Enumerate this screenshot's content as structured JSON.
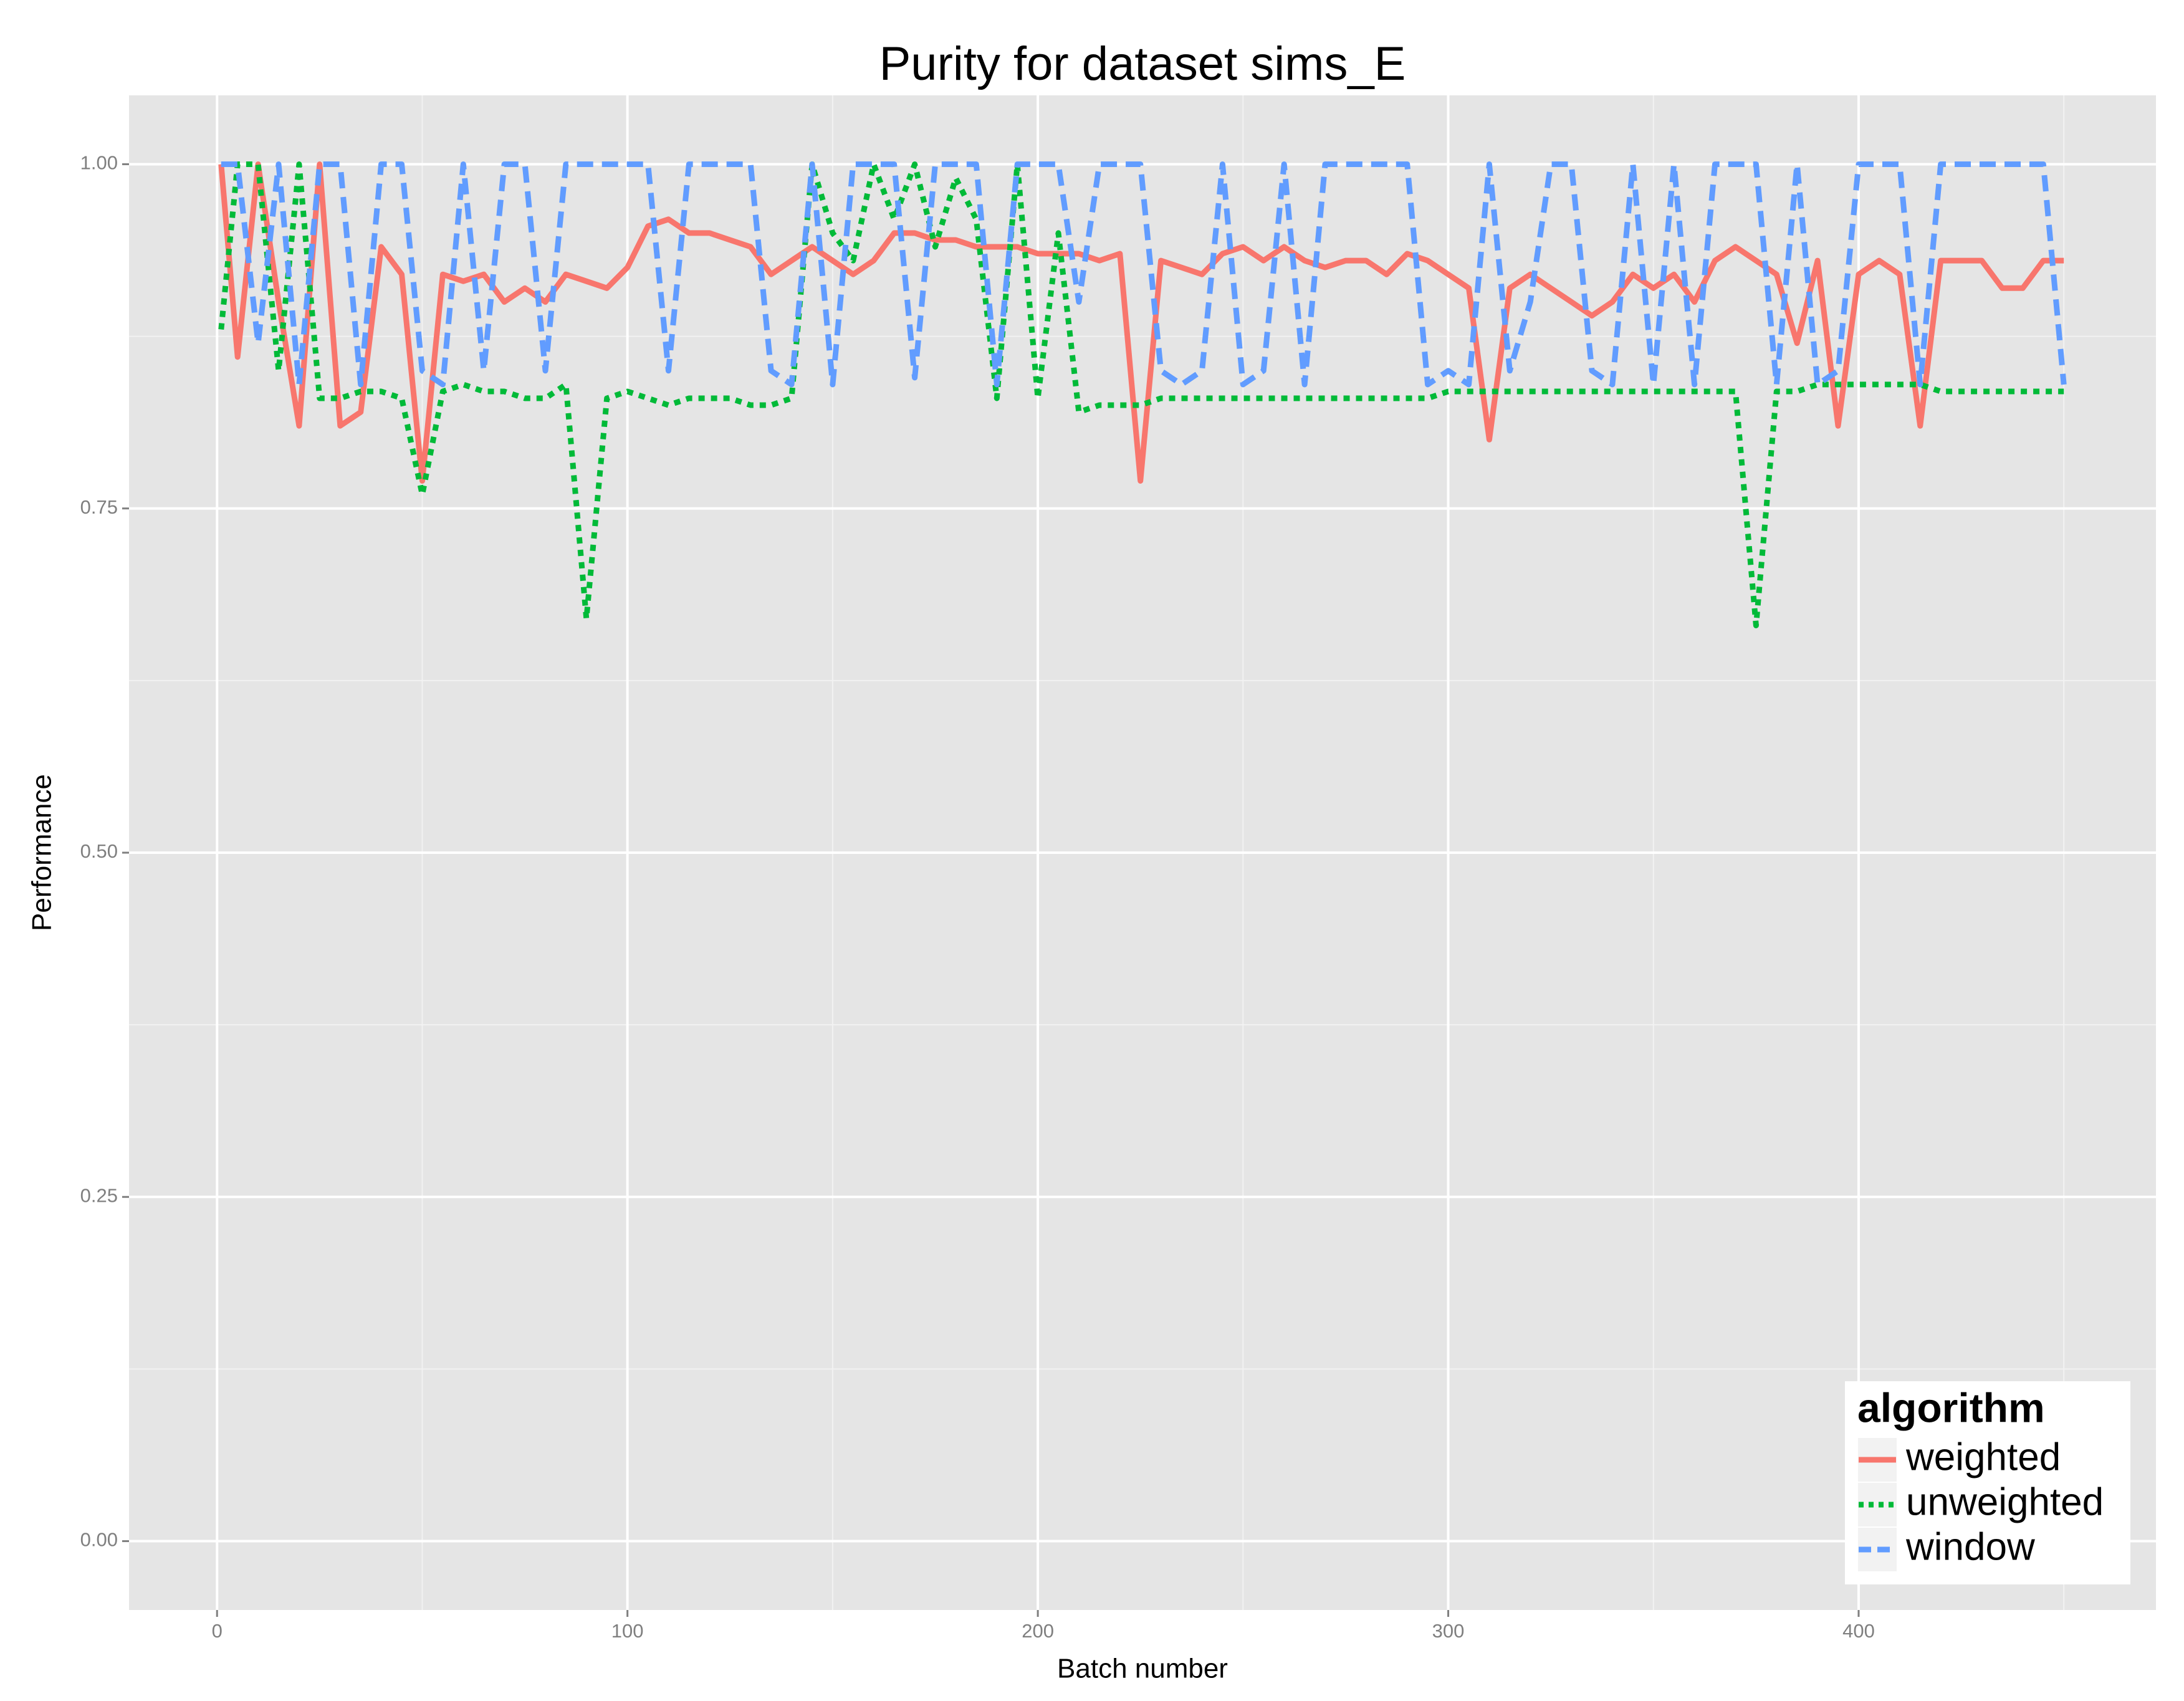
{
  "chart_data": {
    "type": "line",
    "title": "Purity for dataset sims_E",
    "x_label": "Batch number",
    "y_label": "Performance",
    "legend_title": "algorithm",
    "legend_position": "bottom-right",
    "grid": true,
    "xlim": [
      -21.45,
      472.45
    ],
    "ylim": [
      -0.05,
      1.05
    ],
    "xticks": [
      0,
      100,
      200,
      300,
      400
    ],
    "xminorticks": [
      50,
      150,
      250,
      350,
      450
    ],
    "yticks": [
      {
        "value": 0,
        "label": "0.00"
      },
      {
        "value": 0.25,
        "label": "0.25"
      },
      {
        "value": 0.5,
        "label": "0.50"
      },
      {
        "value": 0.75,
        "label": "0.75"
      },
      {
        "value": 1,
        "label": "1.00"
      }
    ],
    "yminorticks": [
      0.125,
      0.375,
      0.625,
      0.875
    ],
    "x": [
      1,
      5,
      10,
      15,
      20,
      25,
      30,
      35,
      40,
      45,
      50,
      55,
      60,
      65,
      70,
      75,
      80,
      85,
      90,
      95,
      100,
      105,
      110,
      115,
      120,
      125,
      130,
      135,
      140,
      145,
      150,
      155,
      160,
      165,
      170,
      175,
      180,
      185,
      190,
      195,
      200,
      205,
      210,
      215,
      220,
      225,
      230,
      235,
      240,
      245,
      250,
      255,
      260,
      265,
      270,
      275,
      280,
      285,
      290,
      295,
      300,
      305,
      310,
      315,
      320,
      325,
      330,
      335,
      340,
      345,
      350,
      355,
      360,
      365,
      370,
      375,
      380,
      385,
      390,
      395,
      400,
      405,
      410,
      415,
      420,
      425,
      430,
      435,
      440,
      445,
      450
    ],
    "series": [
      {
        "name": "weighted",
        "color": "#f8766d",
        "dash": "solid",
        "values": [
          1.0,
          0.86,
          1.0,
          0.9,
          0.81,
          1.0,
          0.81,
          0.82,
          0.94,
          0.92,
          0.77,
          0.92,
          0.915,
          0.92,
          0.9,
          0.91,
          0.9,
          0.92,
          0.915,
          0.91,
          0.925,
          0.955,
          0.96,
          0.95,
          0.95,
          0.945,
          0.94,
          0.92,
          0.93,
          0.94,
          0.93,
          0.92,
          0.93,
          0.95,
          0.95,
          0.945,
          0.945,
          0.94,
          0.94,
          0.94,
          0.935,
          0.935,
          0.935,
          0.93,
          0.935,
          0.77,
          0.93,
          0.925,
          0.92,
          0.935,
          0.94,
          0.93,
          0.94,
          0.93,
          0.925,
          0.93,
          0.93,
          0.92,
          0.935,
          0.93,
          0.92,
          0.91,
          0.8,
          0.91,
          0.92,
          0.91,
          0.9,
          0.89,
          0.9,
          0.92,
          0.91,
          0.92,
          0.9,
          0.93,
          0.94,
          0.93,
          0.92,
          0.87,
          0.93,
          0.81,
          0.92,
          0.93,
          0.92,
          0.81,
          0.93,
          0.93,
          0.93,
          0.91,
          0.91,
          0.93,
          0.93
        ]
      },
      {
        "name": "unweighted",
        "color": "#00ba38",
        "dash": "dotted",
        "values": [
          0.88,
          1.0,
          1.0,
          0.85,
          1.0,
          0.83,
          0.83,
          0.835,
          0.835,
          0.83,
          0.76,
          0.835,
          0.84,
          0.835,
          0.835,
          0.83,
          0.83,
          0.84,
          0.67,
          0.83,
          0.835,
          0.83,
          0.825,
          0.83,
          0.83,
          0.83,
          0.825,
          0.825,
          0.83,
          1.0,
          0.95,
          0.93,
          1.0,
          0.96,
          1.0,
          0.94,
          0.99,
          0.96,
          0.83,
          1.0,
          0.83,
          0.95,
          0.82,
          0.825,
          0.825,
          0.825,
          0.83,
          0.83,
          0.83,
          0.83,
          0.83,
          0.83,
          0.83,
          0.83,
          0.83,
          0.83,
          0.83,
          0.83,
          0.83,
          0.83,
          0.835,
          0.835,
          0.835,
          0.835,
          0.835,
          0.835,
          0.835,
          0.835,
          0.835,
          0.835,
          0.835,
          0.835,
          0.835,
          0.835,
          0.835,
          0.665,
          0.835,
          0.835,
          0.84,
          0.84,
          0.84,
          0.84,
          0.84,
          0.84,
          0.835,
          0.835,
          0.835,
          0.835,
          0.835,
          0.835,
          0.835
        ]
      },
      {
        "name": "window",
        "color": "#619cff",
        "dash": "dashed",
        "values": [
          1.0,
          1.0,
          0.87,
          1.0,
          0.84,
          1.0,
          1.0,
          0.84,
          1.0,
          1.0,
          0.85,
          0.84,
          1.0,
          0.85,
          1.0,
          1.0,
          0.85,
          1.0,
          1.0,
          1.0,
          1.0,
          1.0,
          0.85,
          1.0,
          1.0,
          1.0,
          1.0,
          0.85,
          0.84,
          1.0,
          0.84,
          1.0,
          1.0,
          1.0,
          0.845,
          1.0,
          1.0,
          1.0,
          0.84,
          1.0,
          1.0,
          1.0,
          0.9,
          1.0,
          1.0,
          1.0,
          0.85,
          0.84,
          0.85,
          1.0,
          0.84,
          0.85,
          1.0,
          0.84,
          1.0,
          1.0,
          1.0,
          1.0,
          1.0,
          0.84,
          0.85,
          0.84,
          1.0,
          0.85,
          0.9,
          1.0,
          1.0,
          0.85,
          0.84,
          1.0,
          0.84,
          1.0,
          0.84,
          1.0,
          1.0,
          1.0,
          0.84,
          1.0,
          0.84,
          0.85,
          1.0,
          1.0,
          1.0,
          0.84,
          1.0,
          1.0,
          1.0,
          1.0,
          1.0,
          1.0,
          0.84
        ]
      }
    ]
  }
}
